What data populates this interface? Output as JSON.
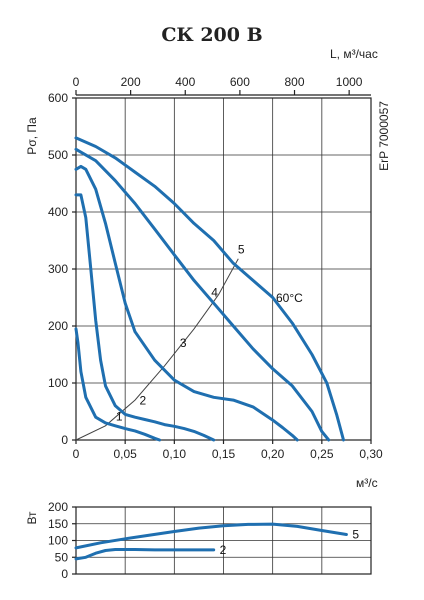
{
  "chart_data": [
    {
      "type": "line",
      "title": "СК 200 В",
      "side_label": "ErP 7000057",
      "ylabel": "Pσ, Па",
      "xlabel": "м³/с",
      "x2label": "L, м³/час",
      "xlim": [
        0,
        0.3
      ],
      "ylim": [
        0,
        600
      ],
      "x2lim": [
        0,
        1080
      ],
      "x_ticks": [
        0,
        0.05,
        0.1,
        0.15,
        0.2,
        0.25,
        0.3
      ],
      "x_tick_labels": [
        "0",
        "0,05",
        "0,10",
        "0,15",
        "0,20",
        "0,25",
        "0,30"
      ],
      "x2_ticks": [
        0,
        200,
        400,
        600,
        800,
        1000
      ],
      "x2_tick_labels": [
        "0",
        "200",
        "400",
        "600",
        "800",
        "1000"
      ],
      "y_ticks": [
        0,
        100,
        200,
        300,
        400,
        500,
        600
      ],
      "y_tick_labels": [
        "0",
        "100",
        "200",
        "300",
        "400",
        "500",
        "600"
      ],
      "grid": true,
      "annotation": "60°C",
      "series": [
        {
          "name": "1",
          "x": [
            0,
            0.002,
            0.005,
            0.01,
            0.02,
            0.03,
            0.04,
            0.05,
            0.06,
            0.07,
            0.08,
            0.085
          ],
          "y": [
            195,
            170,
            120,
            75,
            40,
            30,
            25,
            20,
            16,
            10,
            3,
            0
          ]
        },
        {
          "name": "2",
          "x": [
            0,
            0.005,
            0.01,
            0.015,
            0.02,
            0.025,
            0.03,
            0.04,
            0.05,
            0.06,
            0.07,
            0.08,
            0.09,
            0.1,
            0.11,
            0.12,
            0.13,
            0.14
          ],
          "y": [
            430,
            430,
            390,
            300,
            210,
            140,
            95,
            60,
            45,
            40,
            36,
            32,
            27,
            24,
            20,
            15,
            8,
            0
          ]
        },
        {
          "name": "3",
          "x": [
            0,
            0.005,
            0.01,
            0.02,
            0.03,
            0.04,
            0.05,
            0.06,
            0.08,
            0.1,
            0.12,
            0.13,
            0.14,
            0.16,
            0.18,
            0.2,
            0.21,
            0.22,
            0.225
          ],
          "y": [
            475,
            480,
            475,
            440,
            380,
            310,
            240,
            190,
            140,
            105,
            85,
            80,
            75,
            70,
            58,
            35,
            22,
            8,
            0
          ]
        },
        {
          "name": "4",
          "x": [
            0,
            0.02,
            0.04,
            0.06,
            0.08,
            0.1,
            0.12,
            0.14,
            0.16,
            0.18,
            0.2,
            0.22,
            0.24,
            0.25,
            0.257
          ],
          "y": [
            510,
            490,
            455,
            415,
            370,
            325,
            280,
            240,
            200,
            160,
            125,
            95,
            50,
            15,
            0
          ]
        },
        {
          "name": "5",
          "x": [
            0,
            0.02,
            0.04,
            0.06,
            0.08,
            0.1,
            0.12,
            0.14,
            0.16,
            0.18,
            0.2,
            0.22,
            0.24,
            0.255,
            0.265,
            0.272
          ],
          "y": [
            530,
            515,
            495,
            470,
            445,
            415,
            380,
            350,
            310,
            280,
            250,
            205,
            150,
            100,
            45,
            0
          ]
        }
      ],
      "system_line": {
        "x": [
          0,
          0.03,
          0.06,
          0.09,
          0.12,
          0.145,
          0.165
        ],
        "y": [
          0,
          25,
          70,
          130,
          195,
          255,
          318
        ]
      },
      "curve_label_points": [
        {
          "label": "1",
          "x": 0.044,
          "y": 34
        },
        {
          "label": "2",
          "x": 0.068,
          "y": 62
        },
        {
          "label": "3",
          "x": 0.109,
          "y": 163
        },
        {
          "label": "4",
          "x": 0.141,
          "y": 252
        },
        {
          "label": "5",
          "x": 0.168,
          "y": 327
        }
      ]
    },
    {
      "type": "line",
      "ylabel": "Вт",
      "xlim": [
        0,
        0.3
      ],
      "ylim": [
        0,
        200
      ],
      "y_ticks": [
        0,
        50,
        100,
        150,
        200
      ],
      "y_tick_labels": [
        "0",
        "50",
        "100",
        "150",
        "200"
      ],
      "grid": true,
      "series": [
        {
          "name": "2",
          "x": [
            0,
            0.01,
            0.02,
            0.03,
            0.04,
            0.06,
            0.08,
            0.1,
            0.12,
            0.14
          ],
          "y": [
            45,
            50,
            62,
            70,
            73,
            73,
            72,
            72,
            72,
            72
          ]
        },
        {
          "name": "5",
          "x": [
            0,
            0.025,
            0.05,
            0.075,
            0.1,
            0.125,
            0.15,
            0.175,
            0.2,
            0.225,
            0.25,
            0.275
          ],
          "y": [
            78,
            93,
            105,
            116,
            127,
            137,
            144,
            148,
            149,
            142,
            130,
            118
          ]
        }
      ]
    }
  ]
}
